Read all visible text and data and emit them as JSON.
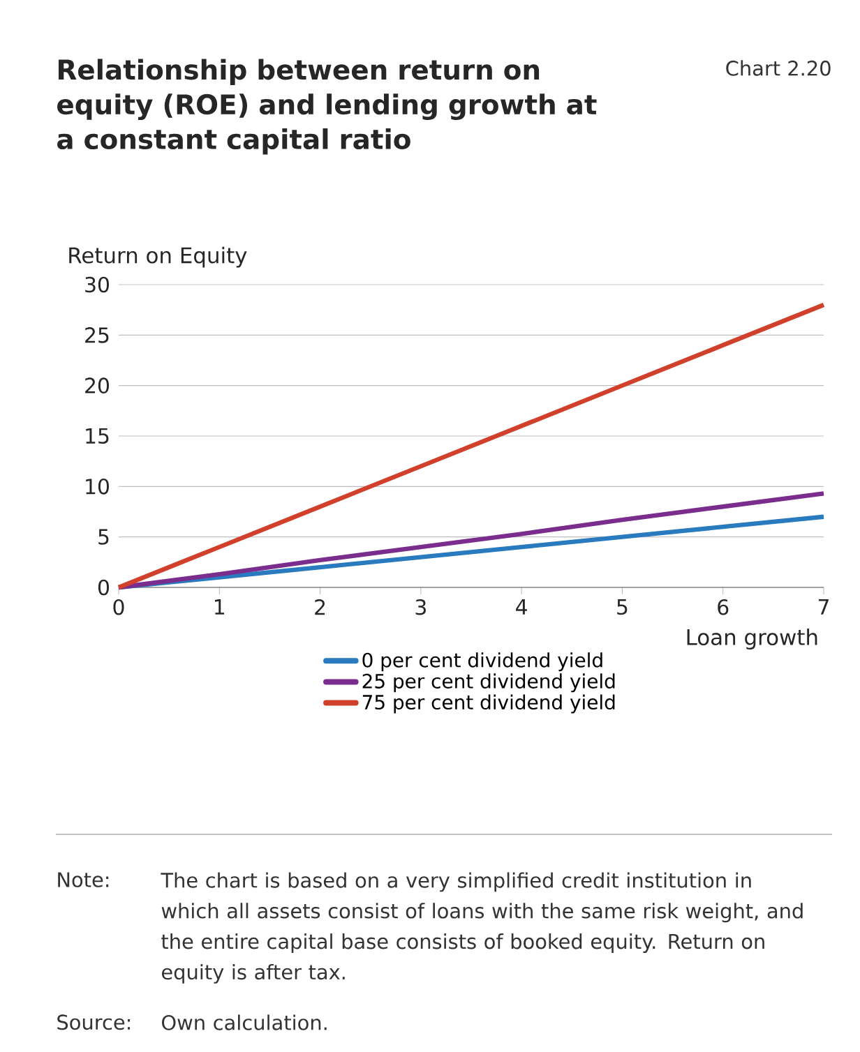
{
  "chart_data": {
    "type": "line",
    "title": "Relationship between return on equity (ROE) and lending growth at a constant capital ratio",
    "subtitle": "Chart 2.20",
    "xlabel": "Loan growth",
    "ylabel": "Return on Equity",
    "x": [
      0,
      1,
      2,
      3,
      4,
      5,
      6,
      7
    ],
    "series": [
      {
        "name": "0 per cent dividend yield",
        "color": "#2a7abf",
        "values": [
          0,
          1,
          2,
          3,
          4,
          5,
          6,
          7
        ]
      },
      {
        "name": "25 per cent dividend yield",
        "color": "#7b2d8e",
        "values": [
          0,
          1.3,
          2.7,
          4,
          5.3,
          6.7,
          8,
          9.3
        ]
      },
      {
        "name": "75 per cent dividend yield",
        "color": "#d0402a",
        "values": [
          0,
          4,
          8,
          12,
          16,
          20,
          24,
          28
        ]
      }
    ],
    "xlim": [
      0,
      7
    ],
    "ylim": [
      0,
      30
    ],
    "xticks": [
      0,
      1,
      2,
      3,
      4,
      5,
      6,
      7
    ],
    "yticks": [
      0,
      5,
      10,
      15,
      20,
      25,
      30
    ],
    "grid": "y",
    "legend": "bottom",
    "line_style": "solid",
    "annotations": [
      "Note:",
      "The chart is based on a very simplified credit institution in which all assets consist of loans with the same risk weight, and the entire capital base consists of booked equity. Return on equity is after tax.",
      "Source:",
      "Own calculation."
    ]
  }
}
